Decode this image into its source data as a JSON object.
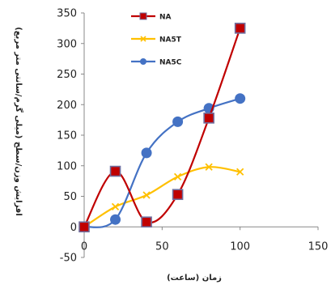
{
  "chart_data": {
    "type": "line",
    "title": "",
    "xlabel": "زمان (ساعت)",
    "ylabel": "افزایش وزن/سطح (میلی گرم/سانتی متر مربع)",
    "xlim": [
      0,
      150
    ],
    "ylim": [
      -50,
      350
    ],
    "x_ticks": [
      0,
      50,
      100,
      150
    ],
    "y_ticks": [
      -50,
      0,
      50,
      100,
      150,
      200,
      250,
      300,
      350
    ],
    "grid": false,
    "legend_position": "top-center",
    "smooth": true,
    "series": [
      {
        "name": "NA",
        "color": "#c00000",
        "marker": "square",
        "x": [
          0,
          20,
          40,
          60,
          80,
          100
        ],
        "y": [
          0,
          91,
          8,
          53,
          178,
          325
        ]
      },
      {
        "name": "NA5T",
        "color": "#ffc000",
        "marker": "x",
        "x": [
          0,
          20,
          40,
          60,
          80,
          100
        ],
        "y": [
          0,
          33,
          52,
          82,
          98,
          90
        ]
      },
      {
        "name": "NA5C",
        "color": "#4472c4",
        "marker": "circle",
        "x": [
          0,
          20,
          40,
          60,
          80,
          100
        ],
        "y": [
          0,
          12,
          121,
          172,
          194,
          210
        ]
      }
    ]
  }
}
